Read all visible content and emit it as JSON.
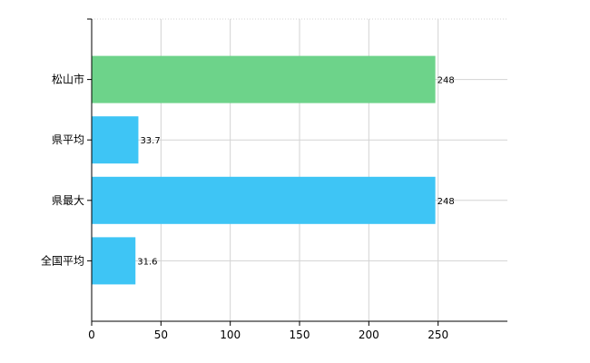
{
  "chart_data": {
    "type": "bar",
    "orientation": "horizontal",
    "categories": [
      "松山市",
      "県平均",
      "県最大",
      "全国平均"
    ],
    "values": [
      248,
      33.7,
      248,
      31.6
    ],
    "value_labels": [
      "248",
      "33.7",
      "248",
      "31.6"
    ],
    "bar_colors": [
      "#6dd38a",
      "#3ec5f5",
      "#3ec5f5",
      "#3ec5f5"
    ],
    "xlim": [
      0,
      300
    ],
    "xticks": [
      0,
      50,
      100,
      150,
      200,
      250
    ],
    "xtick_labels": [
      "0",
      "50",
      "100",
      "150",
      "200",
      "250"
    ],
    "title": "",
    "xlabel": "",
    "ylabel": "",
    "grid": true,
    "legend": "none"
  }
}
